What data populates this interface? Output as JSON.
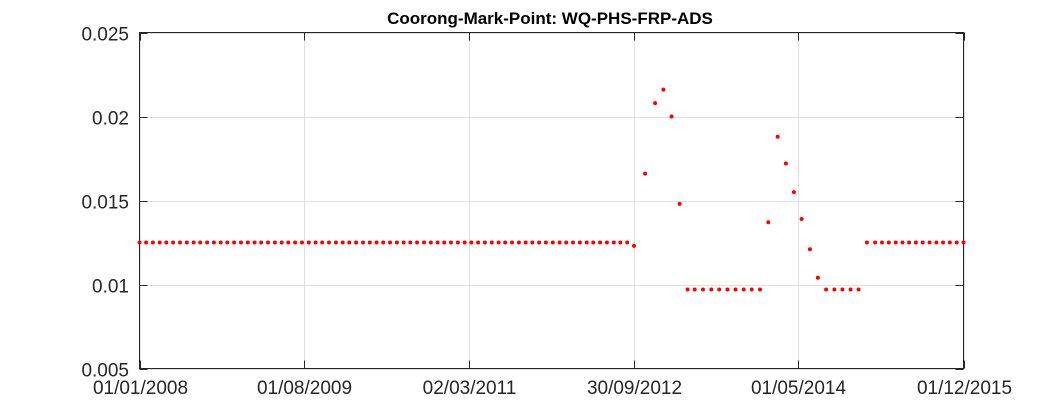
{
  "chart_data": {
    "type": "scatter",
    "title": "Coorong-Mark-Point: WQ-PHS-FRP-ADS",
    "xlabel": "",
    "ylabel": "",
    "x_axis_type": "date",
    "xlim": [
      "2008-01-01",
      "2015-12-01"
    ],
    "ylim": [
      0.005,
      0.025
    ],
    "x_ticks": [
      "2008-01-01",
      "2009-08-01",
      "2011-03-02",
      "2012-09-30",
      "2014-05-01",
      "2015-12-01"
    ],
    "x_tick_labels": [
      "01/01/2008",
      "01/08/2009",
      "02/03/2011",
      "30/09/2012",
      "01/05/2014",
      "01/12/2015"
    ],
    "y_ticks": [
      0.005,
      0.01,
      0.015,
      0.02,
      0.025
    ],
    "y_tick_labels": [
      "0.005",
      "0.01",
      "0.015",
      "0.02",
      "0.025"
    ],
    "grid": true,
    "marker_color": "#ff0000",
    "series": [
      {
        "x": [
          "2008-01-01",
          "2008-01-24",
          "2008-02-17",
          "2008-03-12",
          "2008-04-04",
          "2008-04-28",
          "2008-05-22",
          "2008-06-15",
          "2008-07-09",
          "2008-08-01",
          "2008-08-25",
          "2008-09-18",
          "2008-10-12",
          "2008-11-04",
          "2008-11-28",
          "2008-12-22",
          "2009-01-15",
          "2009-02-08",
          "2009-03-03",
          "2009-03-27",
          "2009-04-20",
          "2009-05-14",
          "2009-06-06",
          "2009-06-30",
          "2009-07-24",
          "2009-08-17",
          "2009-09-10",
          "2009-10-03",
          "2009-10-27",
          "2009-11-20",
          "2009-12-14",
          "2010-01-06",
          "2010-01-30",
          "2010-02-23",
          "2010-03-19",
          "2010-04-12",
          "2010-05-05",
          "2010-05-29",
          "2010-06-22",
          "2010-07-16",
          "2010-08-08",
          "2010-09-01",
          "2010-09-25",
          "2010-10-19",
          "2010-11-12",
          "2010-12-05",
          "2010-12-29",
          "2011-01-22",
          "2011-02-15",
          "2011-03-10",
          "2011-04-03",
          "2011-04-27",
          "2011-05-21",
          "2011-06-14",
          "2011-07-07",
          "2011-07-31",
          "2011-08-24",
          "2011-09-17",
          "2011-10-10",
          "2011-11-03",
          "2011-11-27",
          "2011-12-21",
          "2012-01-14",
          "2012-02-06",
          "2012-03-01",
          "2012-03-25",
          "2012-04-18",
          "2012-05-11",
          "2012-06-04",
          "2012-06-28",
          "2012-07-22",
          "2012-08-14",
          "2012-09-07",
          "2012-10-01",
          "2012-11-09",
          "2012-12-14",
          "2013-01-12",
          "2013-02-10",
          "2013-03-10",
          "2013-04-07",
          "2013-05-02",
          "2013-05-31",
          "2013-06-29",
          "2013-07-27",
          "2013-08-25",
          "2013-09-22",
          "2013-10-21",
          "2013-11-18",
          "2013-12-17",
          "2014-01-15",
          "2014-02-17",
          "2014-03-18",
          "2014-04-15",
          "2014-05-12",
          "2014-06-10",
          "2014-07-08",
          "2014-08-06",
          "2014-09-04",
          "2014-10-02",
          "2014-10-31",
          "2014-11-28",
          "2014-12-27",
          "2015-01-25",
          "2015-02-18",
          "2015-03-14",
          "2015-04-07",
          "2015-05-01",
          "2015-05-24",
          "2015-06-17",
          "2015-07-11",
          "2015-08-04",
          "2015-08-28",
          "2015-09-20",
          "2015-10-14",
          "2015-11-07",
          "2015-12-01"
        ],
        "y": [
          0.0125,
          0.0125,
          0.0125,
          0.0125,
          0.0125,
          0.0125,
          0.0125,
          0.0125,
          0.0125,
          0.0125,
          0.0125,
          0.0125,
          0.0125,
          0.0125,
          0.0125,
          0.0125,
          0.0125,
          0.0125,
          0.0125,
          0.0125,
          0.0125,
          0.0125,
          0.0125,
          0.0125,
          0.0125,
          0.0125,
          0.0125,
          0.0125,
          0.0125,
          0.0125,
          0.0125,
          0.0125,
          0.0125,
          0.0125,
          0.0125,
          0.0125,
          0.0125,
          0.0125,
          0.0125,
          0.0125,
          0.0125,
          0.0125,
          0.0125,
          0.0125,
          0.0125,
          0.0125,
          0.0125,
          0.0125,
          0.0125,
          0.0125,
          0.0125,
          0.0125,
          0.0125,
          0.0125,
          0.0125,
          0.0125,
          0.0125,
          0.0125,
          0.0125,
          0.0125,
          0.0125,
          0.0125,
          0.0125,
          0.0125,
          0.0125,
          0.0125,
          0.0125,
          0.0125,
          0.0125,
          0.0125,
          0.0125,
          0.0125,
          0.0125,
          0.0123,
          0.0166,
          0.0208,
          0.0216,
          0.02,
          0.0148,
          0.0097,
          0.0097,
          0.0097,
          0.0097,
          0.0097,
          0.0097,
          0.0097,
          0.0097,
          0.0097,
          0.0097,
          0.0137,
          0.0188,
          0.0172,
          0.0155,
          0.0139,
          0.0121,
          0.0104,
          0.0097,
          0.0097,
          0.0097,
          0.0097,
          0.0097,
          0.0125,
          0.0125,
          0.0125,
          0.0125,
          0.0125,
          0.0125,
          0.0125,
          0.0125,
          0.0125,
          0.0125,
          0.0125,
          0.0125,
          0.0125,
          0.0125,
          0.0125
        ]
      }
    ]
  }
}
